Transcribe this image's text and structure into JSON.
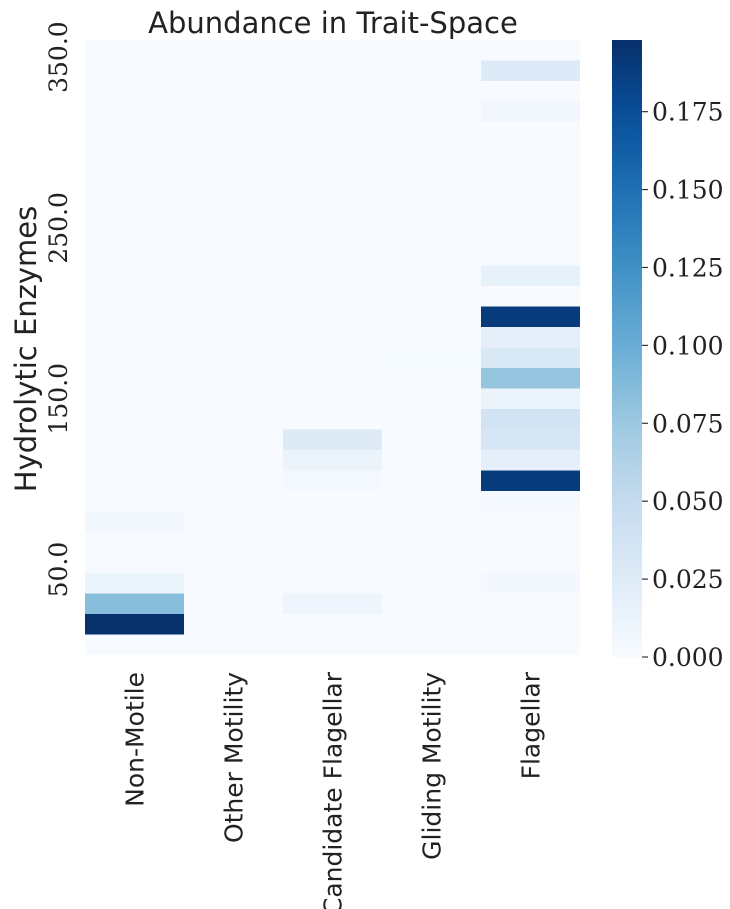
{
  "chart_data": {
    "type": "heatmap",
    "title": "Abundance in Trait-Space",
    "xlabel": "",
    "ylabel": "Hydrolytic Enzymes",
    "categories": [
      "Non-Motile",
      "Other Motility",
      "Candidate Flagellar",
      "Gliding Motility",
      "Flagellar"
    ],
    "y_range": [
      0,
      360
    ],
    "y_bin_width": 12,
    "y_ticks": [
      {
        "value": 50,
        "label": "50.0"
      },
      {
        "value": 150,
        "label": "150.0"
      },
      {
        "value": 250,
        "label": "250.0"
      },
      {
        "value": 350,
        "label": "350.0"
      }
    ],
    "cells": [
      {
        "col": "Non-Motile",
        "y0": 12,
        "y1": 24,
        "value": 0.198
      },
      {
        "col": "Non-Motile",
        "y0": 24,
        "y1": 36,
        "value": 0.085
      },
      {
        "col": "Non-Motile",
        "y0": 36,
        "y1": 48,
        "value": 0.012
      },
      {
        "col": "Non-Motile",
        "y0": 72,
        "y1": 84,
        "value": 0.006
      },
      {
        "col": "Candidate Flagellar",
        "y0": 24,
        "y1": 36,
        "value": 0.009
      },
      {
        "col": "Candidate Flagellar",
        "y0": 96,
        "y1": 108,
        "value": 0.003
      },
      {
        "col": "Candidate Flagellar",
        "y0": 108,
        "y1": 120,
        "value": 0.012
      },
      {
        "col": "Candidate Flagellar",
        "y0": 120,
        "y1": 132,
        "value": 0.025
      },
      {
        "col": "Gliding Motility",
        "y0": 168,
        "y1": 180,
        "value": 0.002
      },
      {
        "col": "Flagellar",
        "y0": 36,
        "y1": 48,
        "value": 0.004
      },
      {
        "col": "Flagellar",
        "y0": 84,
        "y1": 96,
        "value": 0.003
      },
      {
        "col": "Flagellar",
        "y0": 96,
        "y1": 108,
        "value": 0.19
      },
      {
        "col": "Flagellar",
        "y0": 108,
        "y1": 120,
        "value": 0.018
      },
      {
        "col": "Flagellar",
        "y0": 120,
        "y1": 132,
        "value": 0.032
      },
      {
        "col": "Flagellar",
        "y0": 132,
        "y1": 144,
        "value": 0.037
      },
      {
        "col": "Flagellar",
        "y0": 144,
        "y1": 156,
        "value": 0.012
      },
      {
        "col": "Flagellar",
        "y0": 156,
        "y1": 168,
        "value": 0.078
      },
      {
        "col": "Flagellar",
        "y0": 168,
        "y1": 180,
        "value": 0.03
      },
      {
        "col": "Flagellar",
        "y0": 180,
        "y1": 192,
        "value": 0.018
      },
      {
        "col": "Flagellar",
        "y0": 192,
        "y1": 204,
        "value": 0.19
      },
      {
        "col": "Flagellar",
        "y0": 216,
        "y1": 228,
        "value": 0.016
      },
      {
        "col": "Flagellar",
        "y0": 312,
        "y1": 324,
        "value": 0.006
      },
      {
        "col": "Flagellar",
        "y0": 336,
        "y1": 348,
        "value": 0.026
      }
    ],
    "colorbar": {
      "cmap": "Blues",
      "range": [
        0,
        0.198
      ],
      "ticks": [
        {
          "value": 0,
          "label": "0.000"
        },
        {
          "value": 0.025,
          "label": "0.025"
        },
        {
          "value": 0.05,
          "label": "0.050"
        },
        {
          "value": 0.075,
          "label": "0.075"
        },
        {
          "value": 0.1,
          "label": "0.100"
        },
        {
          "value": 0.125,
          "label": "0.125"
        },
        {
          "value": 0.15,
          "label": "0.150"
        },
        {
          "value": 0.175,
          "label": "0.175"
        }
      ]
    },
    "grid": false,
    "legend": "colorbar-right"
  }
}
